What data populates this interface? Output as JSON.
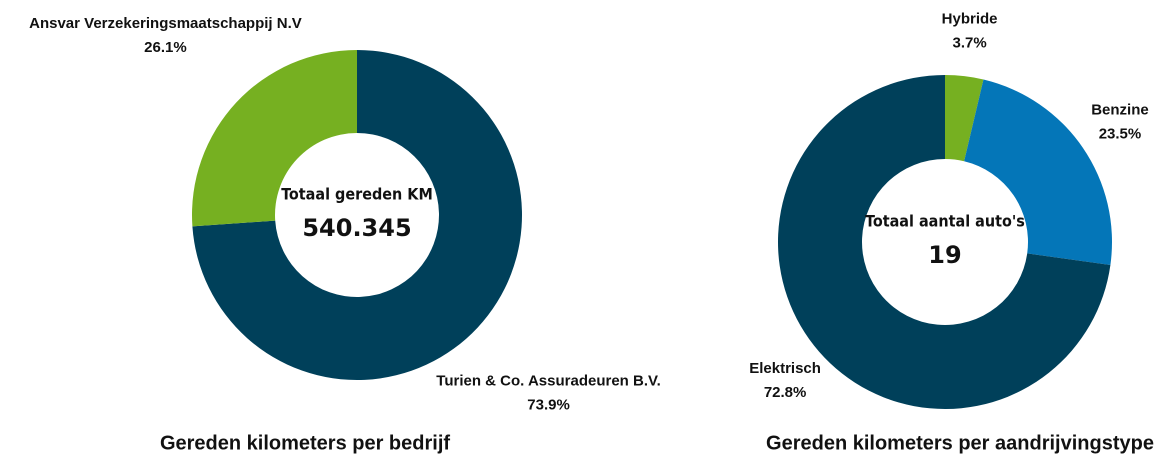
{
  "chart_data": [
    {
      "type": "donut",
      "title": "Gereden kilometers per bedrijf",
      "center_label": "Totaal gereden KM",
      "center_value": "540.345",
      "categories": [
        "Turien & Co. Assuradeuren B.V.",
        "Ansvar Verzekeringsmaatschappij N.V"
      ],
      "values": [
        73.9,
        26.1
      ],
      "value_labels": [
        "73.9%",
        "26.1%"
      ],
      "colors": [
        "#00405a",
        "#76b021"
      ]
    },
    {
      "type": "donut",
      "title": "Gereden kilometers per aandrijvingstype",
      "center_label": "Totaal aantal auto's",
      "center_value": "19",
      "categories": [
        "Hybride",
        "Benzine",
        "Elektrisch"
      ],
      "values": [
        3.7,
        23.5,
        72.8
      ],
      "value_labels": [
        "3.7%",
        "23.5%",
        "72.8%"
      ],
      "colors": [
        "#76b021",
        "#0476b8",
        "#00405a"
      ]
    }
  ]
}
